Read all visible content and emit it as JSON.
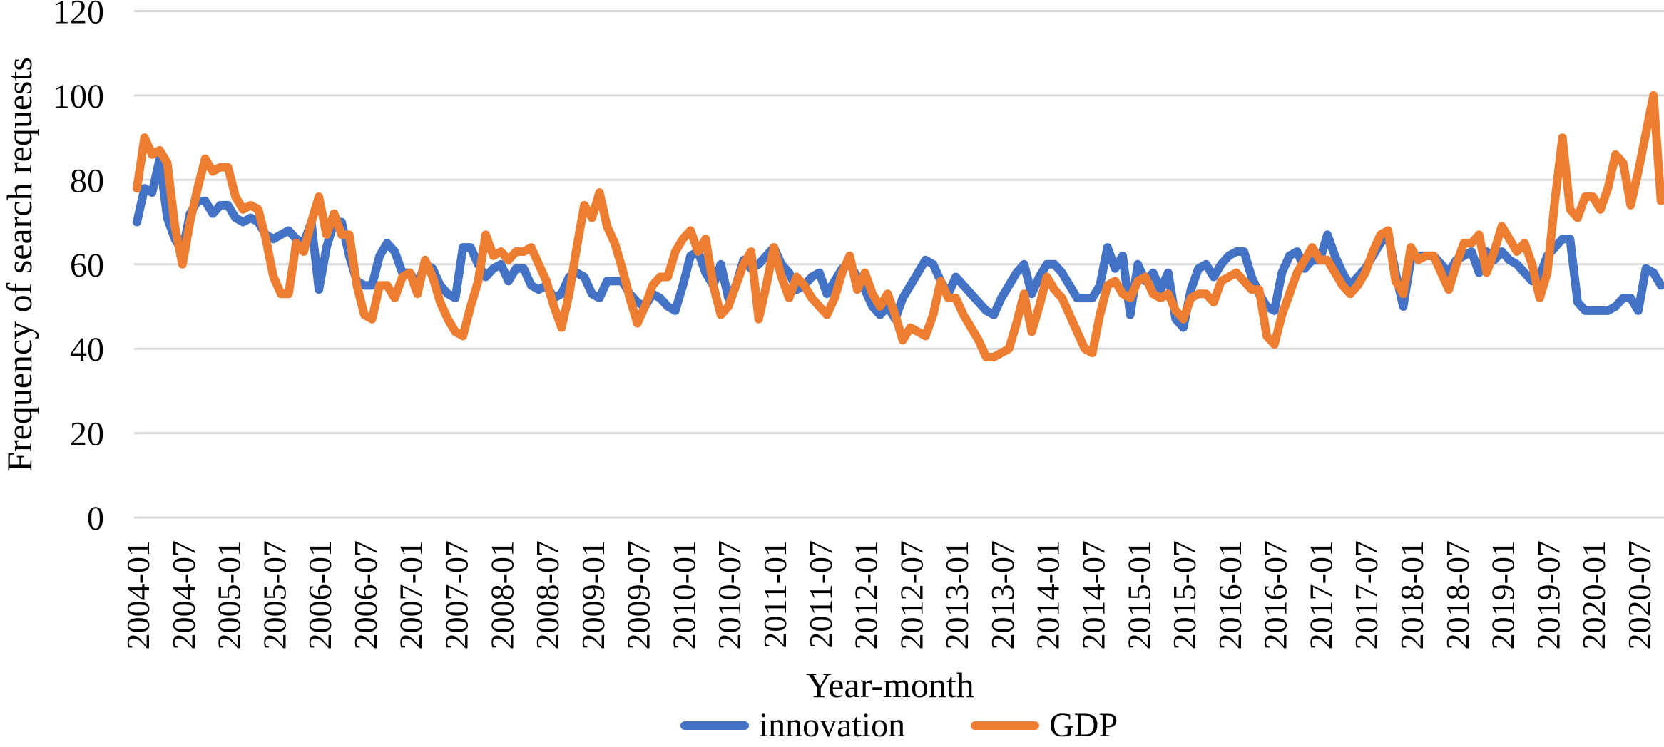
{
  "chart_data": {
    "type": "line",
    "title": "",
    "xlabel": "Year-month",
    "ylabel": "Frequency of search requests",
    "ylim": [
      0,
      120
    ],
    "yticks": [
      0,
      20,
      40,
      60,
      80,
      100,
      120
    ],
    "grid": true,
    "legend_position": "bottom",
    "gridline_color": "#D9D9D9",
    "text_color": "#000000",
    "x_start": "2004-01",
    "x_end": "2020-10",
    "x_step_months": 1,
    "x_tick_labels": [
      "2004-01",
      "2004-07",
      "2005-01",
      "2005-07",
      "2006-01",
      "2006-07",
      "2007-01",
      "2007-07",
      "2008-01",
      "2008-07",
      "2009-01",
      "2009-07",
      "2010-01",
      "2010-07",
      "2011-01",
      "2011-07",
      "2012-01",
      "2012-07",
      "2013-01",
      "2013-07",
      "2014-01",
      "2014-07",
      "2015-01",
      "2015-07",
      "2016-01",
      "2016-07",
      "2017-01",
      "2017-07",
      "2018-01",
      "2018-07",
      "2019-01",
      "2019-07",
      "2020-01",
      "2020-07"
    ],
    "series": [
      {
        "name": "innovation",
        "color": "#4472C4",
        "values": [
          70,
          78,
          77,
          85,
          71,
          66,
          63,
          72,
          75,
          75,
          72,
          74,
          74,
          71,
          70,
          71,
          70,
          67,
          66,
          67,
          68,
          66,
          65,
          70,
          54,
          64,
          70,
          70,
          62,
          56,
          55,
          55,
          62,
          65,
          63,
          58,
          58,
          55,
          60,
          59,
          55,
          53,
          52,
          64,
          64,
          60,
          57,
          59,
          60,
          56,
          59,
          59,
          55,
          54,
          55,
          52,
          53,
          57,
          58,
          57,
          53,
          52,
          56,
          56,
          56,
          53,
          51,
          50,
          53,
          52,
          50,
          49,
          55,
          62,
          63,
          58,
          55,
          60,
          52,
          55,
          61,
          59,
          60,
          62,
          64,
          60,
          58,
          54,
          55,
          57,
          58,
          53,
          56,
          59,
          60,
          57,
          54,
          50,
          48,
          50,
          47,
          52,
          55,
          58,
          61,
          60,
          56,
          53,
          57,
          55,
          53,
          51,
          49,
          48,
          52,
          55,
          58,
          60,
          53,
          57,
          60,
          60,
          58,
          55,
          52,
          52,
          52,
          55,
          64,
          59,
          62,
          48,
          60,
          56,
          58,
          54,
          58,
          47,
          45,
          54,
          59,
          60,
          57,
          60,
          62,
          63,
          63,
          57,
          53,
          50,
          49,
          58,
          62,
          63,
          59,
          61,
          61,
          67,
          62,
          58,
          55,
          57,
          59,
          62,
          65,
          67,
          58,
          50,
          61,
          62,
          62,
          62,
          60,
          58,
          61,
          62,
          63,
          58,
          63,
          61,
          63,
          61,
          60,
          58,
          56,
          57,
          62,
          64,
          66,
          66,
          51,
          49,
          49,
          49,
          49,
          50,
          52,
          52,
          49,
          59,
          58,
          55
        ]
      },
      {
        "name": "GDP",
        "color": "#ED7D31",
        "values": [
          78,
          90,
          86,
          87,
          84,
          69,
          60,
          70,
          78,
          85,
          82,
          83,
          83,
          76,
          73,
          74,
          73,
          66,
          57,
          53,
          53,
          65,
          63,
          70,
          76,
          67,
          72,
          67,
          67,
          55,
          48,
          47,
          55,
          55,
          52,
          57,
          58,
          53,
          61,
          57,
          51,
          47,
          44,
          43,
          50,
          56,
          67,
          62,
          63,
          61,
          63,
          63,
          64,
          60,
          56,
          50,
          45,
          53,
          64,
          74,
          71,
          77,
          69,
          65,
          59,
          52,
          46,
          50,
          55,
          57,
          57,
          63,
          66,
          68,
          63,
          66,
          55,
          48,
          50,
          55,
          60,
          63,
          47,
          55,
          64,
          57,
          52,
          57,
          55,
          52,
          50,
          48,
          52,
          58,
          62,
          54,
          58,
          53,
          50,
          53,
          48,
          42,
          45,
          44,
          43,
          48,
          56,
          52,
          52,
          48,
          45,
          42,
          38,
          38,
          39,
          40,
          46,
          53,
          44,
          50,
          57,
          54,
          52,
          48,
          44,
          40,
          39,
          48,
          55,
          56,
          53,
          52,
          56,
          57,
          53,
          52,
          53,
          49,
          47,
          52,
          53,
          53,
          51,
          56,
          57,
          58,
          56,
          54,
          54,
          43,
          41,
          48,
          53,
          58,
          61,
          64,
          61,
          61,
          58,
          55,
          53,
          55,
          58,
          63,
          67,
          68,
          56,
          53,
          64,
          61,
          62,
          62,
          58,
          54,
          60,
          65,
          65,
          67,
          58,
          63,
          69,
          66,
          63,
          65,
          60,
          52,
          58,
          75,
          90,
          73,
          71,
          76,
          76,
          73,
          78,
          86,
          84,
          74,
          82,
          91,
          100,
          75
        ]
      }
    ]
  }
}
